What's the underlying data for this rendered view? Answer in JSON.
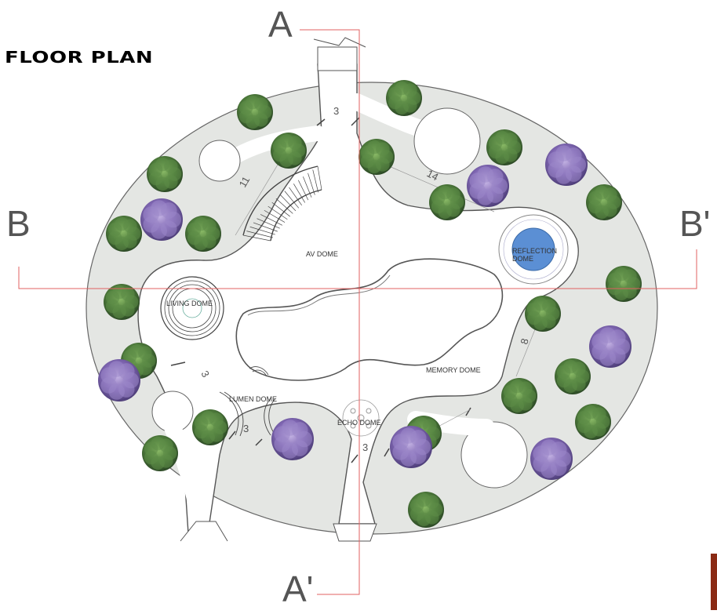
{
  "title": "FLOOR PLAN",
  "section_marks": {
    "a_top": "A",
    "a_bottom": "A'",
    "b_left": "B",
    "b_right": "B'"
  },
  "domes": {
    "av": "AV DOME",
    "reflection_line1": "REFLECTION",
    "reflection_line2": "DOME",
    "living": "LIVING DOME",
    "memory": "MEMORY DOME",
    "lumen": "LUMEN DOME",
    "echo": "ECHO DOME"
  },
  "dimensions": {
    "top_entrance": "3",
    "upper_left_path": "11",
    "upper_right_path": "14",
    "right_path": "8",
    "lower_left_path": "3",
    "lumen_entrance": "3",
    "echo_entrance": "3"
  },
  "colors": {
    "landscape": "#e4e6e3",
    "outline": "#555555",
    "section_line": "#e06060",
    "pool": "#5b8fd4",
    "tree_green": "#3e6a33",
    "tree_purple": "#7a63a8"
  }
}
